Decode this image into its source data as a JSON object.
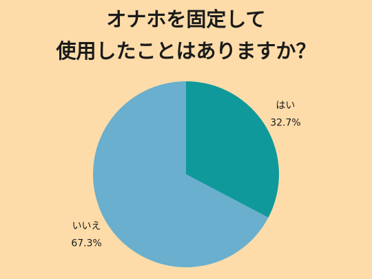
{
  "chart_data": {
    "type": "pie",
    "title": [
      "オナホを固定して",
      "使用したことはありますか？"
    ],
    "categories": [
      "はい",
      "いいえ"
    ],
    "values": [
      32.7,
      67.3
    ],
    "value_labels": [
      "32.7%",
      "67.3%"
    ],
    "colors": [
      "#10999b",
      "#6aafcd"
    ]
  }
}
